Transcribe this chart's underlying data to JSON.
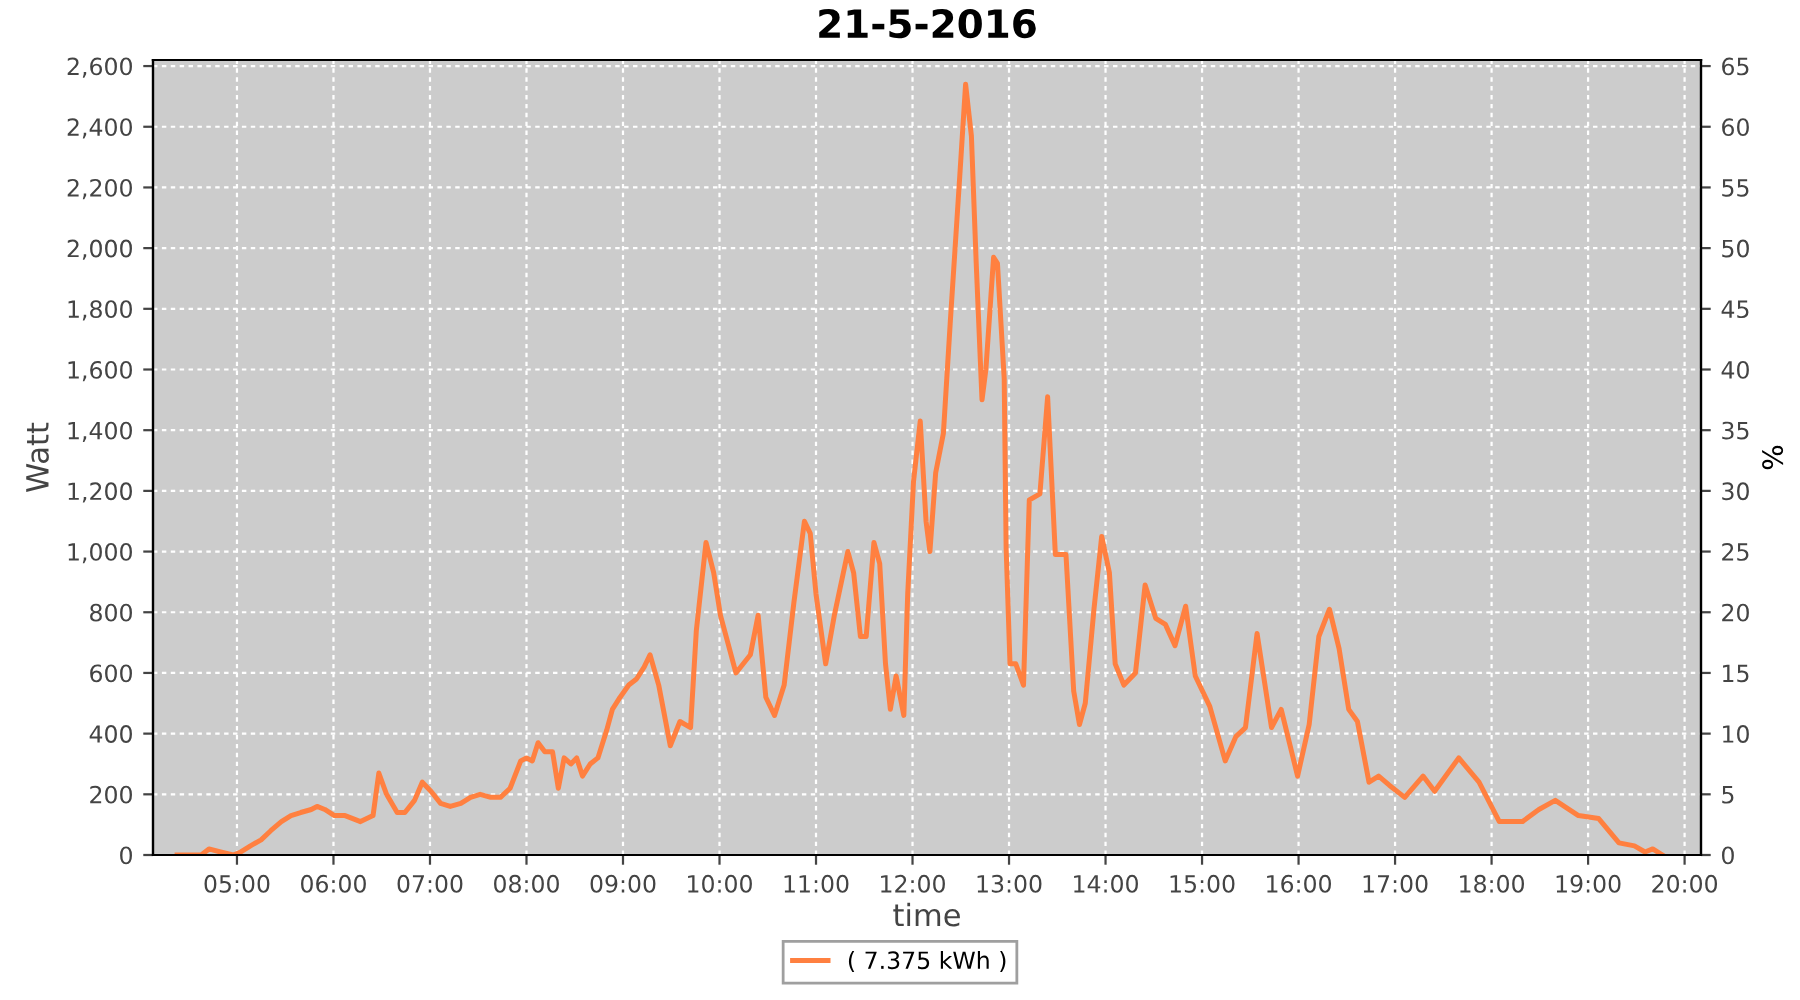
{
  "chart_data": {
    "type": "line",
    "title": "21-5-2016",
    "xlabel": "time",
    "ylabel": "Watt",
    "y2label": "%",
    "xlim": [
      4.13,
      20.17
    ],
    "xticks": [
      {
        "value": 5,
        "label": "05:00"
      },
      {
        "value": 6,
        "label": "06:00"
      },
      {
        "value": 7,
        "label": "07:00"
      },
      {
        "value": 8,
        "label": "08:00"
      },
      {
        "value": 9,
        "label": "09:00"
      },
      {
        "value": 10,
        "label": "10:00"
      },
      {
        "value": 11,
        "label": "11:00"
      },
      {
        "value": 12,
        "label": "12:00"
      },
      {
        "value": 13,
        "label": "13:00"
      },
      {
        "value": 14,
        "label": "14:00"
      },
      {
        "value": 15,
        "label": "15:00"
      },
      {
        "value": 16,
        "label": "16:00"
      },
      {
        "value": 17,
        "label": "17:00"
      },
      {
        "value": 18,
        "label": "18:00"
      },
      {
        "value": 19,
        "label": "19:00"
      },
      {
        "value": 20,
        "label": "20:00"
      }
    ],
    "ylim": [
      0,
      2620
    ],
    "yticks": [
      0,
      200,
      400,
      600,
      800,
      {
        "value": 1000,
        "label": "1,000"
      },
      {
        "value": 1200,
        "label": "1,200"
      },
      {
        "value": 1400,
        "label": "1,400"
      },
      {
        "value": 1600,
        "label": "1,600"
      },
      {
        "value": 1800,
        "label": "1,800"
      },
      {
        "value": 2000,
        "label": "2,000"
      },
      {
        "value": 2200,
        "label": "2,200"
      },
      {
        "value": 2400,
        "label": "2,400"
      },
      {
        "value": 2600,
        "label": "2,600"
      }
    ],
    "y2lim": [
      0,
      65.5
    ],
    "y2ticks": [
      0,
      5,
      10,
      15,
      20,
      25,
      30,
      35,
      40,
      45,
      50,
      55,
      60,
      65
    ],
    "grid": true,
    "legend": "bottom",
    "marker": "none",
    "line_style": "solid",
    "series": [
      {
        "name": "( 7.375 kWh )",
        "color": "#ff8040",
        "x": [
          4.38,
          4.63,
          4.71,
          4.83,
          4.96,
          5.04,
          5.14,
          5.25,
          5.35,
          5.46,
          5.56,
          5.66,
          5.77,
          5.83,
          5.91,
          6.01,
          6.12,
          6.2,
          6.28,
          6.41,
          6.47,
          6.55,
          6.66,
          6.74,
          6.84,
          6.92,
          7.01,
          7.11,
          7.21,
          7.32,
          7.42,
          7.52,
          7.63,
          7.73,
          7.83,
          7.94,
          8.0,
          8.06,
          8.12,
          8.19,
          8.27,
          8.33,
          8.39,
          8.46,
          8.52,
          8.58,
          8.66,
          8.74,
          8.83,
          8.89,
          8.97,
          9.06,
          9.14,
          9.22,
          9.28,
          9.37,
          9.49,
          9.59,
          9.7,
          9.76,
          9.86,
          9.94,
          10.01,
          10.17,
          10.32,
          10.4,
          10.48,
          10.57,
          10.67,
          10.77,
          10.88,
          10.94,
          11.0,
          11.1,
          11.19,
          11.33,
          11.39,
          11.46,
          11.52,
          11.6,
          11.66,
          11.72,
          11.77,
          11.83,
          11.91,
          11.95,
          12.01,
          12.08,
          12.14,
          12.18,
          12.24,
          12.32,
          12.39,
          12.49,
          12.55,
          12.61,
          12.66,
          12.72,
          12.76,
          12.84,
          12.88,
          12.95,
          12.97,
          13.01,
          13.07,
          13.15,
          13.21,
          13.32,
          13.4,
          13.48,
          13.59,
          13.67,
          13.73,
          13.79,
          13.88,
          13.96,
          14.04,
          14.1,
          14.19,
          14.31,
          14.41,
          14.52,
          14.62,
          14.72,
          14.83,
          14.93,
          15.08,
          15.24,
          15.35,
          15.45,
          15.57,
          15.72,
          15.82,
          15.99,
          16.11,
          16.21,
          16.32,
          16.42,
          16.52,
          16.61,
          16.73,
          16.83,
          16.94,
          17.1,
          17.29,
          17.41,
          17.66,
          17.87,
          18.08,
          18.32,
          18.49,
          18.66,
          18.9,
          19.11,
          19.32,
          19.48,
          19.59,
          19.67,
          19.77
        ],
        "values": [
          0,
          0,
          20,
          10,
          0,
          10,
          30,
          50,
          80,
          110,
          130,
          140,
          150,
          160,
          150,
          130,
          130,
          120,
          110,
          130,
          270,
          200,
          140,
          140,
          180,
          240,
          210,
          170,
          160,
          170,
          190,
          200,
          190,
          190,
          220,
          310,
          320,
          310,
          370,
          340,
          340,
          220,
          320,
          300,
          320,
          260,
          300,
          320,
          410,
          480,
          520,
          560,
          580,
          620,
          660,
          560,
          360,
          440,
          420,
          740,
          1030,
          930,
          790,
          600,
          660,
          790,
          520,
          460,
          560,
          830,
          1100,
          1060,
          860,
          630,
          790,
          1000,
          930,
          720,
          720,
          1030,
          960,
          630,
          480,
          590,
          460,
          860,
          1230,
          1430,
          1100,
          1000,
          1260,
          1390,
          1750,
          2240,
          2540,
          2370,
          1950,
          1500,
          1600,
          1970,
          1950,
          1570,
          1010,
          630,
          630,
          560,
          1170,
          1190,
          1510,
          990,
          990,
          540,
          430,
          500,
          810,
          1050,
          930,
          630,
          560,
          600,
          890,
          780,
          760,
          690,
          820,
          590,
          490,
          310,
          390,
          420,
          730,
          420,
          480,
          260,
          430,
          720,
          810,
          680,
          480,
          440,
          240,
          260,
          230,
          190,
          260,
          210,
          320,
          240,
          110,
          110,
          150,
          180,
          130,
          120,
          40,
          30,
          10,
          20,
          0
        ]
      }
    ]
  }
}
